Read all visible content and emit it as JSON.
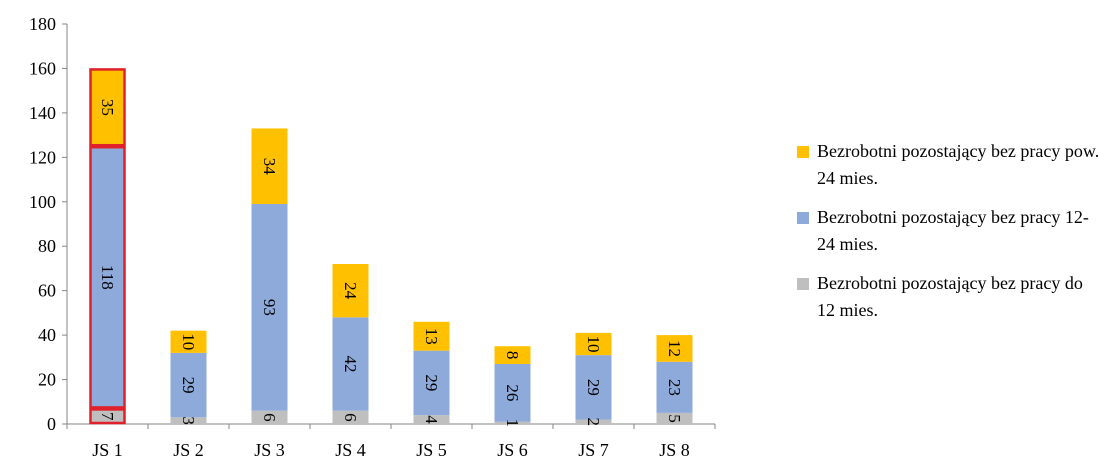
{
  "chart_data": {
    "type": "bar",
    "stacked": true,
    "categories": [
      "JS 1",
      "JS 2",
      "JS 3",
      "JS 4",
      "JS 5",
      "JS 6",
      "JS 7",
      "JS 8"
    ],
    "series": [
      {
        "name": "Bezrobotni pozostający bez pracy do 12 mies.",
        "color": "#bfbfbf",
        "values": [
          7,
          3,
          6,
          6,
          4,
          1,
          2,
          5
        ]
      },
      {
        "name": "Bezrobotni pozostający bez pracy 12-24 mies.",
        "color": "#8eaadb",
        "values": [
          118,
          29,
          93,
          42,
          29,
          26,
          29,
          23
        ]
      },
      {
        "name": "Bezrobotni pozostający bez pracy pow. 24 mies.",
        "color": "#ffc000",
        "values": [
          35,
          10,
          34,
          24,
          13,
          8,
          10,
          12
        ]
      }
    ],
    "ylim": [
      0,
      180
    ],
    "yticks": [
      0,
      20,
      40,
      60,
      80,
      100,
      120,
      140,
      160,
      180
    ],
    "legend_position": "right",
    "legend_order": [
      2,
      1,
      0
    ],
    "highlight_category": "JS 1",
    "highlight_color": "#e0202a"
  }
}
